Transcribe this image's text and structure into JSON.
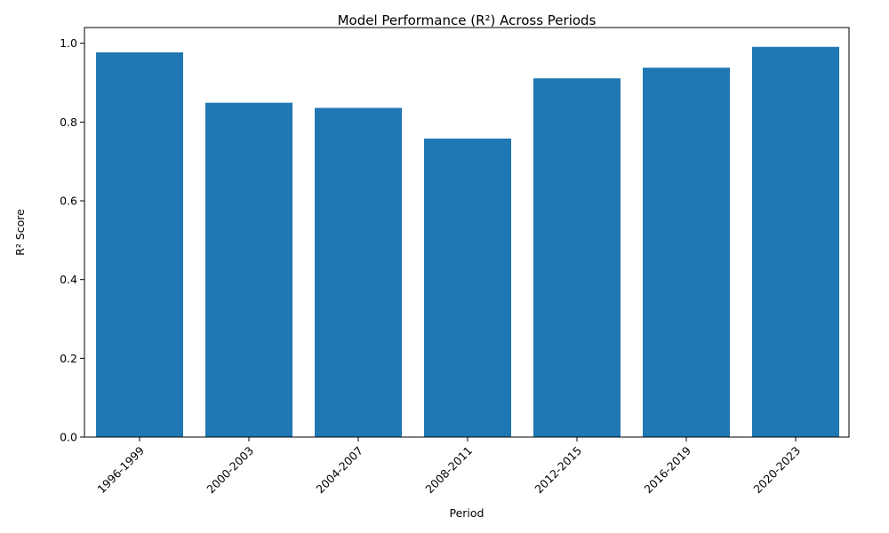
{
  "chart_data": {
    "type": "bar",
    "title": "Model Performance (R²) Across Periods",
    "xlabel": "Period",
    "ylabel": "R² Score",
    "categories": [
      "1996-1999",
      "2000-2003",
      "2004-2007",
      "2008-2011",
      "2012-2015",
      "2016-2019",
      "2020-2023"
    ],
    "values": [
      0.977,
      0.849,
      0.836,
      0.758,
      0.911,
      0.938,
      0.991
    ],
    "ylim": [
      0,
      1.04
    ],
    "yticks": [
      "0.0",
      "0.2",
      "0.4",
      "0.6",
      "0.8",
      "1.0"
    ],
    "x_tick_rotation_deg": 45,
    "bar_color": "#1f77b4",
    "grid": false,
    "legend": "none"
  }
}
